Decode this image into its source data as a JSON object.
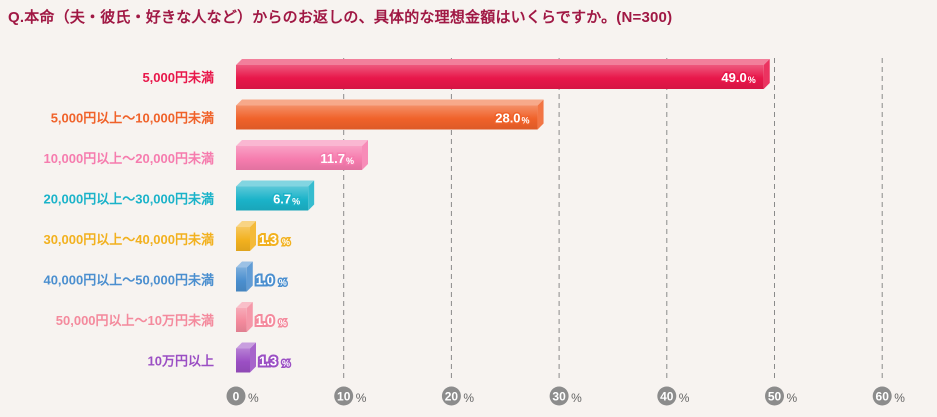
{
  "chart_data": {
    "type": "bar",
    "orientation": "horizontal",
    "title": "Q.本命（夫・彼氏・好きな人など）からのお返しの、具体的な理想金額はいくらですか。(N=300)",
    "categories": [
      "5,000円未満",
      "5,000円以上〜10,000円未満",
      "10,000円以上〜20,000円未満",
      "20,000円以上〜30,000円未満",
      "30,000円以上〜40,000円未満",
      "40,000円以上〜50,000円未満",
      "50,000円以上〜10万円未満",
      "10万円以上"
    ],
    "values": [
      49.0,
      28.0,
      11.7,
      6.7,
      1.3,
      1.0,
      1.0,
      1.3
    ],
    "value_labels": [
      "49.0",
      "28.0",
      "11.7",
      "6.7",
      "1.3",
      "1.0",
      "1.0",
      "1.3"
    ],
    "value_unit": "%",
    "colors": [
      "#e8174a",
      "#f0622a",
      "#f67cae",
      "#1bb3c9",
      "#f2b11f",
      "#4b8fcf",
      "#f48a9d",
      "#9b4fc4"
    ],
    "xlim": [
      0,
      60
    ],
    "x_ticks": [
      "0",
      "10",
      "20",
      "30",
      "40",
      "50",
      "60"
    ],
    "x_tick_unit": "%",
    "grid": "vertical-dashed"
  }
}
